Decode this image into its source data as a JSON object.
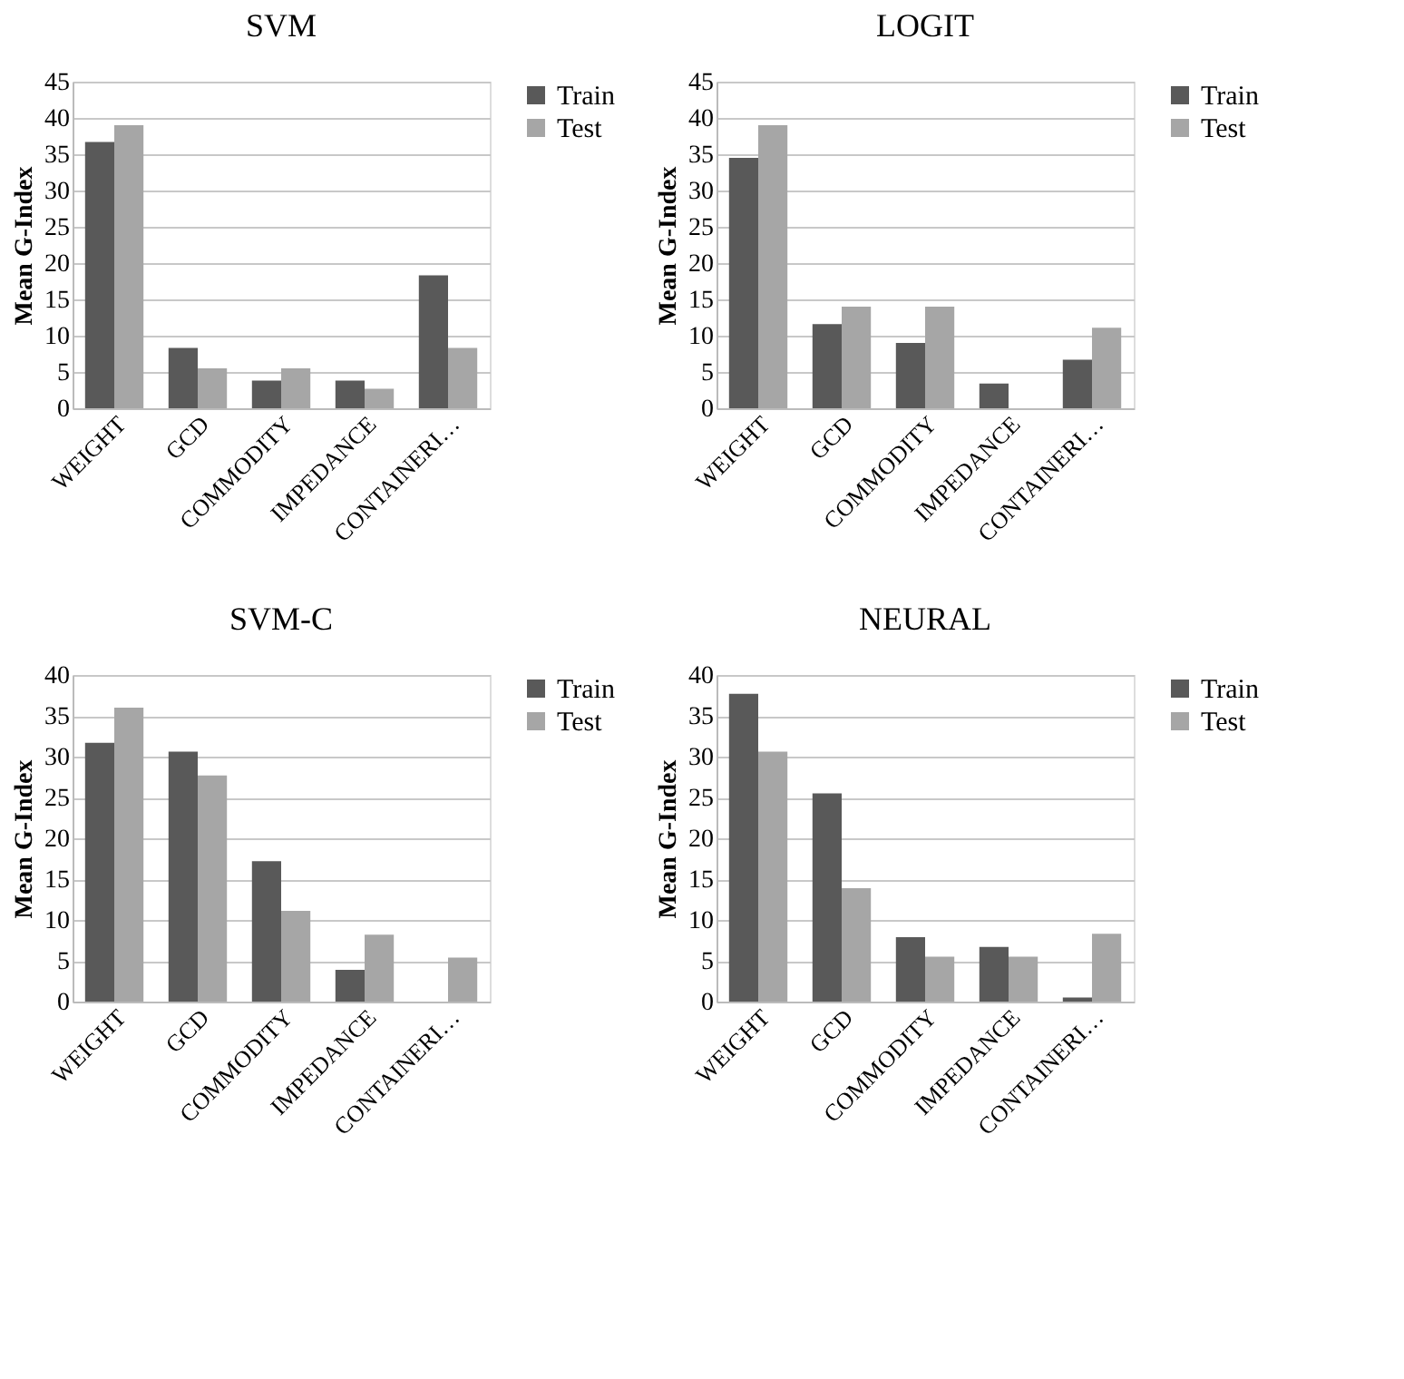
{
  "chart_data": [
    {
      "type": "bar",
      "title": "SVM",
      "ylabel": "Mean G-Index",
      "categories": [
        "WEIGHT",
        "GCD",
        "COMMODITY",
        "IMPEDANCE",
        "CONTAINERI…"
      ],
      "ylim": [
        0,
        45
      ],
      "yticks": [
        0,
        5,
        10,
        15,
        20,
        25,
        30,
        35,
        40,
        45
      ],
      "grid": "y",
      "legend": "right",
      "series": [
        {
          "name": "Train",
          "color": "#595959",
          "values": [
            36.7,
            8.3,
            3.8,
            3.8,
            18.3
          ]
        },
        {
          "name": "Test",
          "color": "#a6a6a6",
          "values": [
            39,
            5.5,
            5.5,
            2.7,
            8.3
          ]
        }
      ]
    },
    {
      "type": "bar",
      "title": "LOGIT",
      "ylabel": "Mean G-Index",
      "categories": [
        "WEIGHT",
        "GCD",
        "COMMODITY",
        "IMPEDANCE",
        "CONTAINERI…"
      ],
      "ylim": [
        0,
        45
      ],
      "yticks": [
        0,
        5,
        10,
        15,
        20,
        25,
        30,
        35,
        40,
        45
      ],
      "grid": "y",
      "legend": "right",
      "series": [
        {
          "name": "Train",
          "color": "#595959",
          "values": [
            34.5,
            11.6,
            9,
            3.4,
            6.7
          ]
        },
        {
          "name": "Test",
          "color": "#a6a6a6",
          "values": [
            39,
            14,
            14,
            0,
            11.1
          ]
        }
      ]
    },
    {
      "type": "bar",
      "title": "SVM-C",
      "ylabel": "Mean G-Index",
      "categories": [
        "WEIGHT",
        "GCD",
        "COMMODITY",
        "IMPEDANCE",
        "CONTAINERI…"
      ],
      "ylim": [
        0,
        40
      ],
      "yticks": [
        0,
        5,
        10,
        15,
        20,
        25,
        30,
        35,
        40
      ],
      "grid": "y",
      "legend": "right",
      "series": [
        {
          "name": "Train",
          "color": "#595959",
          "values": [
            31.7,
            30.6,
            17.2,
            3.9,
            0
          ]
        },
        {
          "name": "Test",
          "color": "#a6a6a6",
          "values": [
            36,
            27.7,
            11.1,
            8.2,
            5.4
          ]
        }
      ]
    },
    {
      "type": "bar",
      "title": "NEURAL",
      "ylabel": "Mean G-Index",
      "categories": [
        "WEIGHT",
        "GCD",
        "COMMODITY",
        "IMPEDANCE",
        "CONTAINERI…"
      ],
      "ylim": [
        0,
        40
      ],
      "yticks": [
        0,
        5,
        10,
        15,
        20,
        25,
        30,
        35,
        40
      ],
      "grid": "y",
      "legend": "right",
      "series": [
        {
          "name": "Train",
          "color": "#595959",
          "values": [
            37.7,
            25.5,
            7.9,
            6.7,
            0.5
          ]
        },
        {
          "name": "Test",
          "color": "#a6a6a6",
          "values": [
            30.6,
            13.9,
            5.5,
            5.5,
            8.3
          ]
        }
      ]
    }
  ]
}
